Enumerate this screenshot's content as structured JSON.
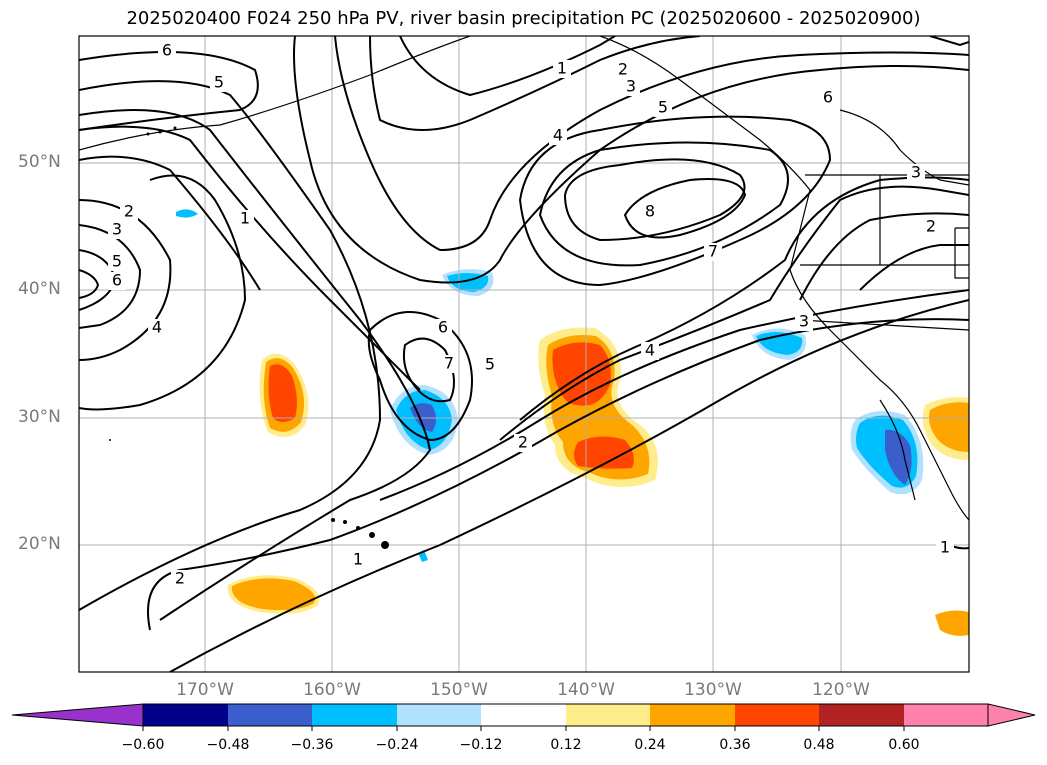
{
  "title": "2025020400 F024 250 hPa PV, river basin precipitation PC (2025020600 - 2025020900)",
  "lat_labels": [
    "50°N",
    "40°N",
    "30°N",
    "20°N"
  ],
  "lon_labels": [
    "170°W",
    "160°W",
    "150°W",
    "140°W",
    "130°W",
    "120°W"
  ],
  "contour_labels": [
    "6",
    "5",
    "1",
    "2",
    "3",
    "5",
    "4",
    "6",
    "8",
    "7",
    "2",
    "3",
    "5",
    "6",
    "4",
    "1",
    "6",
    "7",
    "5",
    "2",
    "4",
    "3",
    "3",
    "2",
    "1",
    "2",
    "1"
  ],
  "colorbar": {
    "ticks": [
      "−0.60",
      "−0.48",
      "−0.36",
      "−0.24",
      "−0.12",
      "0.12",
      "0.24",
      "0.36",
      "0.48",
      "0.60"
    ],
    "colors": [
      "#9932cc",
      "#00008b",
      "#3a5fcd",
      "#00bfff",
      "#b0e2ff",
      "#ffffff",
      "#ffec8b",
      "#ffa500",
      "#ff4500",
      "#b22222",
      "#ff82ab"
    ]
  },
  "colors": {
    "pos_light": "#ffec8b",
    "pos_mid": "#ffa500",
    "pos_strong": "#ff4500",
    "neg_light": "#b0e2ff",
    "neg_mid": "#00bfff",
    "neg_strong": "#3a5fcd"
  }
}
